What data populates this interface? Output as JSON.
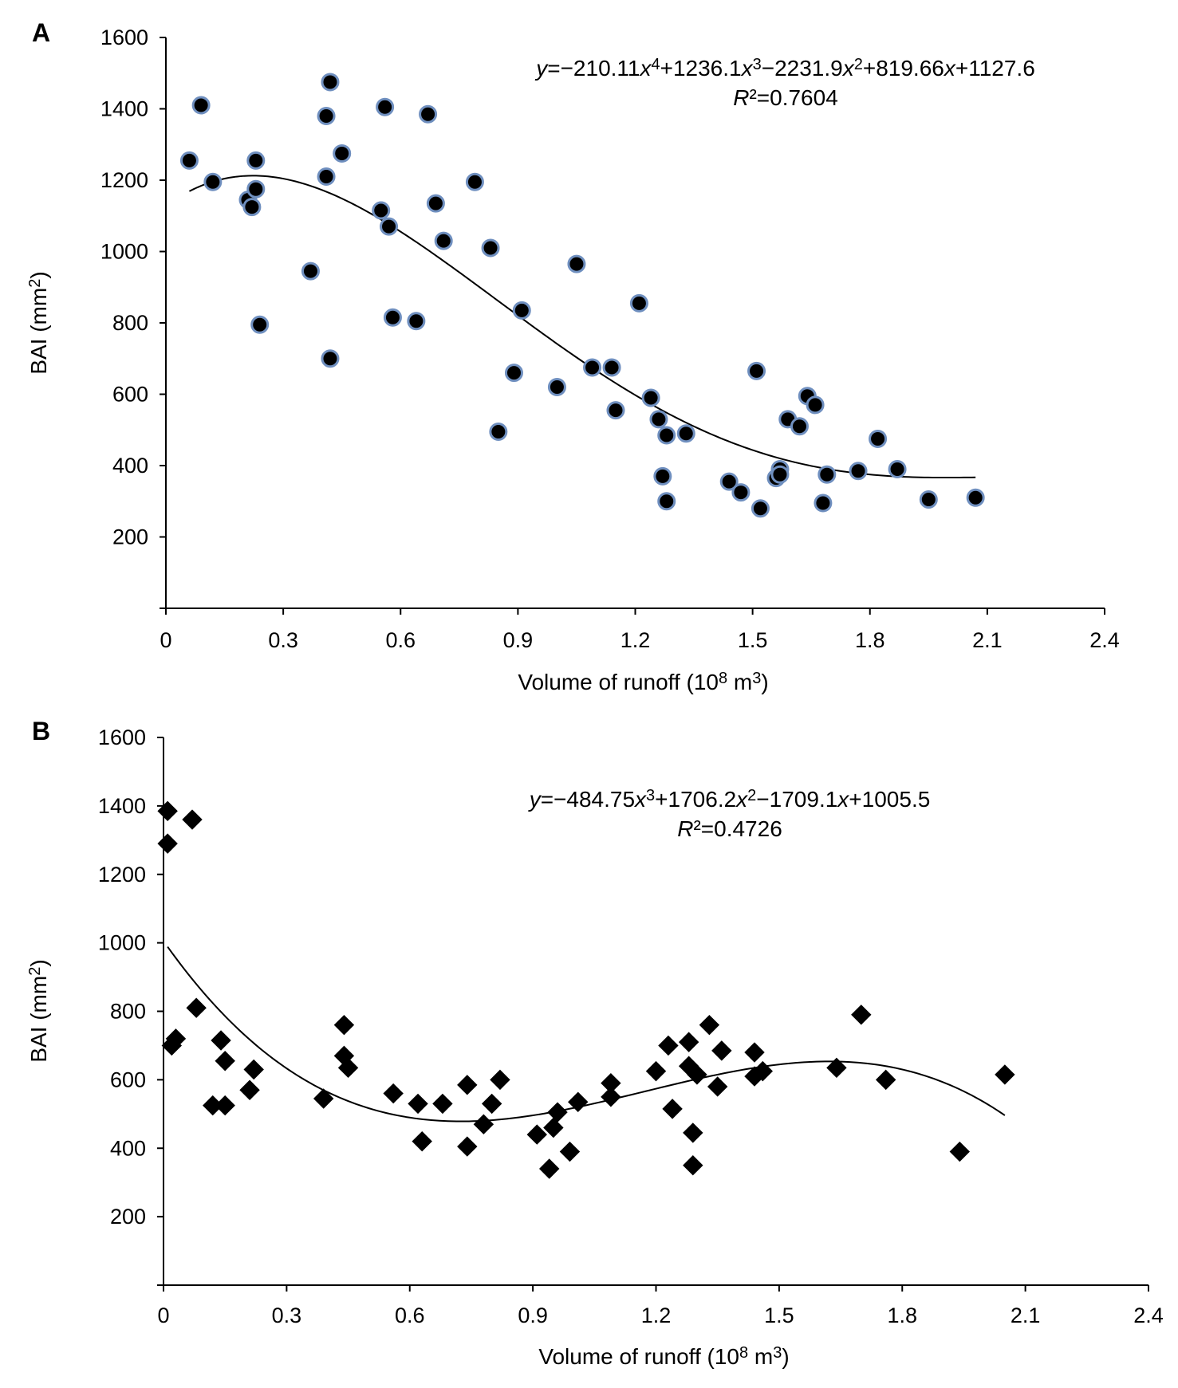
{
  "chart_data": [
    {
      "panel_label": "A",
      "type": "scatter",
      "marker": "circle",
      "marker_fill": "#000000",
      "marker_stroke": "#6f8fbf",
      "xlabel": "Volume of runoff  (10",
      "xlabel_sup": "8",
      "xlabel_unit": " m",
      "xlabel_unit_sup": "3",
      "xlabel_close": ")",
      "ylabel": "BAI (mm",
      "ylabel_sup": "2",
      "ylabel_close": ")",
      "xlim": [
        0,
        2.4
      ],
      "ylim": [
        0,
        1600
      ],
      "x_ticks": [
        "0",
        "0.3",
        "0.6",
        "0.9",
        "1.2",
        "1.5",
        "1.8",
        "2.1",
        "2.4"
      ],
      "y_ticks": [
        "200",
        "400",
        "600",
        "800",
        "1000",
        "1200",
        "1400",
        "1600"
      ],
      "equation": [
        {
          "t": "y",
          "i": true
        },
        {
          "t": "=−210.11"
        },
        {
          "t": "x",
          "i": true
        },
        {
          "t": "4",
          "sup": true
        },
        {
          "t": "+1236.1"
        },
        {
          "t": "x",
          "i": true
        },
        {
          "t": "3",
          "sup": true
        },
        {
          "t": "−2231.9"
        },
        {
          "t": "x",
          "i": true
        },
        {
          "t": "2",
          "sup": true
        },
        {
          "t": "+819.66"
        },
        {
          "t": "x",
          "i": true
        },
        {
          "t": "+1127.6"
        }
      ],
      "r2": [
        {
          "t": "R",
          "i": true
        },
        {
          "t": "²=0.7604"
        }
      ],
      "fit": {
        "type": "polynomial",
        "coefficients": [
          1127.6,
          819.66,
          -2231.9,
          1236.1,
          -210.11
        ],
        "x_range": [
          0.06,
          2.07
        ]
      },
      "points": [
        {
          "x": 0.06,
          "y": 1255
        },
        {
          "x": 0.09,
          "y": 1410
        },
        {
          "x": 0.12,
          "y": 1195
        },
        {
          "x": 0.21,
          "y": 1145
        },
        {
          "x": 0.22,
          "y": 1125
        },
        {
          "x": 0.23,
          "y": 1255
        },
        {
          "x": 0.23,
          "y": 1175
        },
        {
          "x": 0.24,
          "y": 795
        },
        {
          "x": 0.37,
          "y": 945
        },
        {
          "x": 0.41,
          "y": 1210
        },
        {
          "x": 0.41,
          "y": 1380
        },
        {
          "x": 0.42,
          "y": 1475
        },
        {
          "x": 0.42,
          "y": 700
        },
        {
          "x": 0.45,
          "y": 1275
        },
        {
          "x": 0.55,
          "y": 1115
        },
        {
          "x": 0.56,
          "y": 1405
        },
        {
          "x": 0.57,
          "y": 1070
        },
        {
          "x": 0.58,
          "y": 815
        },
        {
          "x": 0.64,
          "y": 805
        },
        {
          "x": 0.67,
          "y": 1385
        },
        {
          "x": 0.69,
          "y": 1135
        },
        {
          "x": 0.71,
          "y": 1030
        },
        {
          "x": 0.79,
          "y": 1195
        },
        {
          "x": 0.83,
          "y": 1010
        },
        {
          "x": 0.85,
          "y": 495
        },
        {
          "x": 0.89,
          "y": 660
        },
        {
          "x": 0.91,
          "y": 835
        },
        {
          "x": 1.0,
          "y": 620
        },
        {
          "x": 1.05,
          "y": 965
        },
        {
          "x": 1.09,
          "y": 675
        },
        {
          "x": 1.14,
          "y": 675
        },
        {
          "x": 1.15,
          "y": 555
        },
        {
          "x": 1.21,
          "y": 855
        },
        {
          "x": 1.24,
          "y": 590
        },
        {
          "x": 1.26,
          "y": 530
        },
        {
          "x": 1.27,
          "y": 370
        },
        {
          "x": 1.28,
          "y": 485
        },
        {
          "x": 1.28,
          "y": 300
        },
        {
          "x": 1.33,
          "y": 490
        },
        {
          "x": 1.44,
          "y": 355
        },
        {
          "x": 1.47,
          "y": 325
        },
        {
          "x": 1.51,
          "y": 665
        },
        {
          "x": 1.52,
          "y": 280
        },
        {
          "x": 1.56,
          "y": 365
        },
        {
          "x": 1.57,
          "y": 390
        },
        {
          "x": 1.57,
          "y": 375
        },
        {
          "x": 1.59,
          "y": 530
        },
        {
          "x": 1.62,
          "y": 510
        },
        {
          "x": 1.64,
          "y": 595
        },
        {
          "x": 1.66,
          "y": 570
        },
        {
          "x": 1.68,
          "y": 295
        },
        {
          "x": 1.69,
          "y": 375
        },
        {
          "x": 1.77,
          "y": 385
        },
        {
          "x": 1.82,
          "y": 475
        },
        {
          "x": 1.87,
          "y": 390
        },
        {
          "x": 1.95,
          "y": 305
        },
        {
          "x": 2.07,
          "y": 310
        }
      ]
    },
    {
      "panel_label": "B",
      "type": "scatter",
      "marker": "diamond",
      "marker_fill": "#000000",
      "marker_stroke": "#000000",
      "xlabel": "Volume of runoff  (10",
      "xlabel_sup": "8",
      "xlabel_unit": " m",
      "xlabel_unit_sup": "3",
      "xlabel_close": ")",
      "ylabel": "BAI (mm",
      "ylabel_sup": "2",
      "ylabel_close": ")",
      "xlim": [
        0,
        2.4
      ],
      "ylim": [
        0,
        1600
      ],
      "x_ticks": [
        "0",
        "0.3",
        "0.6",
        "0.9",
        "1.2",
        "1.5",
        "1.8",
        "2.1",
        "2.4"
      ],
      "y_ticks": [
        "200",
        "400",
        "600",
        "800",
        "1000",
        "1200",
        "1400",
        "1600"
      ],
      "equation": [
        {
          "t": "y",
          "i": true
        },
        {
          "t": "=−484.75"
        },
        {
          "t": "x",
          "i": true
        },
        {
          "t": "3",
          "sup": true
        },
        {
          "t": "+1706.2"
        },
        {
          "t": "x",
          "i": true
        },
        {
          "t": "2",
          "sup": true
        },
        {
          "t": "−1709.1"
        },
        {
          "t": "x",
          "i": true
        },
        {
          "t": "+1005.5"
        }
      ],
      "r2": [
        {
          "t": "R",
          "i": true
        },
        {
          "t": "²=0.4726"
        }
      ],
      "fit": {
        "type": "polynomial",
        "coefficients": [
          1005.5,
          -1709.1,
          1706.2,
          -484.75
        ],
        "x_range": [
          0.01,
          2.05
        ]
      },
      "points": [
        {
          "x": 0.01,
          "y": 1385
        },
        {
          "x": 0.01,
          "y": 1290
        },
        {
          "x": 0.02,
          "y": 700
        },
        {
          "x": 0.03,
          "y": 720
        },
        {
          "x": 0.07,
          "y": 1360
        },
        {
          "x": 0.08,
          "y": 810
        },
        {
          "x": 0.12,
          "y": 525
        },
        {
          "x": 0.14,
          "y": 715
        },
        {
          "x": 0.15,
          "y": 655
        },
        {
          "x": 0.15,
          "y": 525
        },
        {
          "x": 0.21,
          "y": 570
        },
        {
          "x": 0.22,
          "y": 630
        },
        {
          "x": 0.39,
          "y": 545
        },
        {
          "x": 0.44,
          "y": 760
        },
        {
          "x": 0.44,
          "y": 670
        },
        {
          "x": 0.45,
          "y": 635
        },
        {
          "x": 0.56,
          "y": 560
        },
        {
          "x": 0.62,
          "y": 530
        },
        {
          "x": 0.63,
          "y": 420
        },
        {
          "x": 0.68,
          "y": 530
        },
        {
          "x": 0.74,
          "y": 585
        },
        {
          "x": 0.74,
          "y": 405
        },
        {
          "x": 0.78,
          "y": 470
        },
        {
          "x": 0.8,
          "y": 530
        },
        {
          "x": 0.82,
          "y": 600
        },
        {
          "x": 0.91,
          "y": 440
        },
        {
          "x": 0.94,
          "y": 340
        },
        {
          "x": 0.95,
          "y": 460
        },
        {
          "x": 0.96,
          "y": 505
        },
        {
          "x": 0.99,
          "y": 390
        },
        {
          "x": 1.01,
          "y": 535
        },
        {
          "x": 1.09,
          "y": 590
        },
        {
          "x": 1.09,
          "y": 550
        },
        {
          "x": 1.2,
          "y": 625
        },
        {
          "x": 1.23,
          "y": 700
        },
        {
          "x": 1.24,
          "y": 515
        },
        {
          "x": 1.28,
          "y": 710
        },
        {
          "x": 1.28,
          "y": 640
        },
        {
          "x": 1.29,
          "y": 445
        },
        {
          "x": 1.29,
          "y": 350
        },
        {
          "x": 1.3,
          "y": 615
        },
        {
          "x": 1.33,
          "y": 760
        },
        {
          "x": 1.35,
          "y": 580
        },
        {
          "x": 1.36,
          "y": 685
        },
        {
          "x": 1.44,
          "y": 680
        },
        {
          "x": 1.44,
          "y": 610
        },
        {
          "x": 1.46,
          "y": 625
        },
        {
          "x": 1.64,
          "y": 635
        },
        {
          "x": 1.7,
          "y": 790
        },
        {
          "x": 1.76,
          "y": 600
        },
        {
          "x": 1.94,
          "y": 390
        },
        {
          "x": 2.05,
          "y": 615
        }
      ]
    }
  ]
}
